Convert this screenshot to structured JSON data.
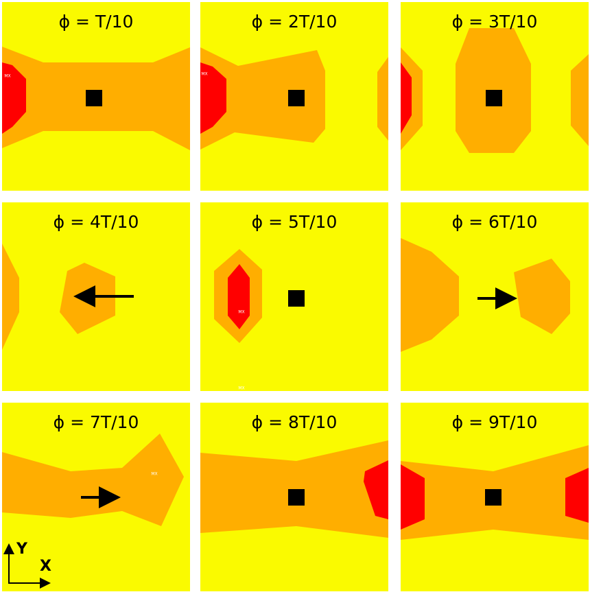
{
  "panels": [
    {
      "title": "ϕ = T/10",
      "labels": [
        "MX"
      ]
    },
    {
      "title": "ϕ = 2T/10",
      "labels": [
        "MX"
      ]
    },
    {
      "title": "ϕ = 3T/10"
    },
    {
      "title": "ϕ = 4T/10"
    },
    {
      "title": "ϕ = 5T/10",
      "labels": [
        "MX",
        "MX"
      ]
    },
    {
      "title": "ϕ = 6T/10"
    },
    {
      "title": "ϕ = 7T/10",
      "labels": [
        "MX"
      ]
    },
    {
      "title": "ϕ = 8T/10"
    },
    {
      "title": "ϕ = 9T/10"
    }
  ],
  "axes": {
    "y": "Y",
    "x": "X"
  }
}
